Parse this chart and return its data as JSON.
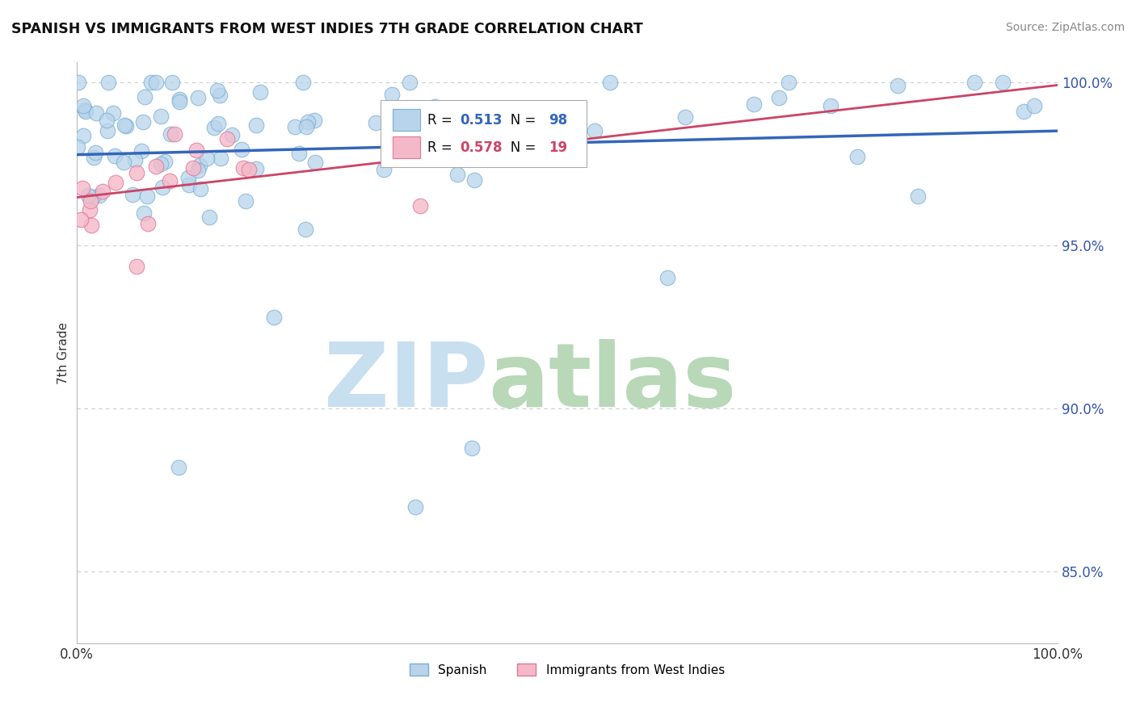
{
  "title": "SPANISH VS IMMIGRANTS FROM WEST INDIES 7TH GRADE CORRELATION CHART",
  "source": "Source: ZipAtlas.com",
  "ylabel": "7th Grade",
  "xlim": [
    0.0,
    1.0
  ],
  "ylim": [
    0.828,
    1.006
  ],
  "y_ticks": [
    0.85,
    0.9,
    0.95,
    1.0
  ],
  "y_tick_labels": [
    "85.0%",
    "90.0%",
    "95.0%",
    "100.0%"
  ],
  "x_tick_labels": [
    "0.0%",
    "100.0%"
  ],
  "legend_blue_label": "Spanish",
  "legend_pink_label": "Immigrants from West Indies",
  "r_blue": "0.513",
  "n_blue": "98",
  "r_pink": "0.578",
  "n_pink": "19",
  "blue_dot_color": "#b8d4ea",
  "blue_dot_edge": "#7aafd4",
  "pink_dot_color": "#f5b8c8",
  "pink_dot_edge": "#e07898",
  "trendline_blue_color": "#3366bb",
  "trendline_pink_color": "#cc4466",
  "watermark_zip_color": "#c8dff0",
  "watermark_atlas_color": "#b8d8b8",
  "grid_color": "#cccccc",
  "tick_label_color": "#3355aa",
  "spine_color": "#bbbbbb",
  "title_color": "#111111",
  "source_color": "#888888"
}
